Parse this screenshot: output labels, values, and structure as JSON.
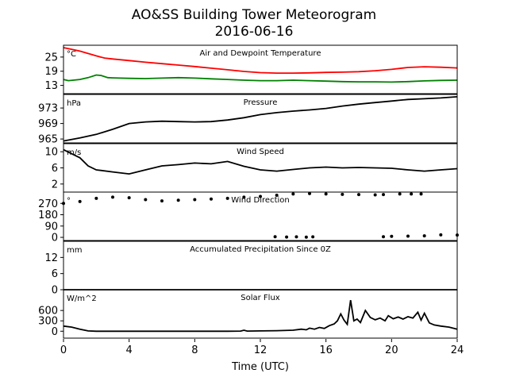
{
  "figure": {
    "title": "AO&SS Building Tower Meteorogram",
    "subtitle": "2016-06-16",
    "xlabel": "Time (UTC)"
  },
  "chart_data": [
    {
      "type": "line",
      "title": "Air and Dewpoint Temperature",
      "unit": "°C",
      "xlim": [
        0,
        24
      ],
      "ylim": [
        9.5,
        30
      ],
      "yticks": [
        13,
        19,
        25
      ],
      "series": [
        {
          "color": "#ff0000",
          "points": [
            [
              0,
              29.0
            ],
            [
              0.5,
              28.3
            ],
            [
              1,
              27.5
            ],
            [
              1.5,
              26.5
            ],
            [
              2,
              25.5
            ],
            [
              2.5,
              24.6
            ],
            [
              3,
              24.2
            ],
            [
              4,
              23.5
            ],
            [
              5,
              22.8
            ],
            [
              6,
              22.2
            ],
            [
              7,
              21.6
            ],
            [
              8,
              21.0
            ],
            [
              9,
              20.3
            ],
            [
              10,
              19.6
            ],
            [
              11,
              18.9
            ],
            [
              12,
              18.4
            ],
            [
              13,
              18.2
            ],
            [
              14,
              18.2
            ],
            [
              15,
              18.3
            ],
            [
              16,
              18.5
            ],
            [
              17,
              18.6
            ],
            [
              18,
              18.8
            ],
            [
              19,
              19.2
            ],
            [
              20,
              19.8
            ],
            [
              21,
              20.6
            ],
            [
              22,
              20.9
            ],
            [
              23,
              20.7
            ],
            [
              24,
              20.4
            ]
          ]
        },
        {
          "color": "#008000",
          "points": [
            [
              0,
              15.5
            ],
            [
              0.3,
              15.0
            ],
            [
              0.6,
              15.2
            ],
            [
              1,
              15.5
            ],
            [
              1.5,
              16.3
            ],
            [
              2,
              17.4
            ],
            [
              2.3,
              17.2
            ],
            [
              2.7,
              16.3
            ],
            [
              3,
              16.2
            ],
            [
              4,
              16.0
            ],
            [
              5,
              15.9
            ],
            [
              6,
              16.1
            ],
            [
              7,
              16.3
            ],
            [
              8,
              16.1
            ],
            [
              9,
              15.8
            ],
            [
              10,
              15.5
            ],
            [
              11,
              15.2
            ],
            [
              12,
              15.0
            ],
            [
              13,
              15.0
            ],
            [
              14,
              15.2
            ],
            [
              15,
              15.0
            ],
            [
              16,
              14.8
            ],
            [
              17,
              14.6
            ],
            [
              18,
              14.5
            ],
            [
              19,
              14.5
            ],
            [
              20,
              14.4
            ],
            [
              21,
              14.6
            ],
            [
              22,
              14.9
            ],
            [
              23,
              15.1
            ],
            [
              24,
              15.2
            ]
          ]
        }
      ]
    },
    {
      "type": "line",
      "title": "Pressure",
      "unit": "hPa",
      "xlim": [
        0,
        24
      ],
      "ylim": [
        964,
        976.5
      ],
      "yticks": [
        965,
        969,
        973
      ],
      "series": [
        {
          "color": "#000000",
          "points": [
            [
              0,
              964.5
            ],
            [
              1,
              965.3
            ],
            [
              2,
              966.2
            ],
            [
              3,
              967.5
            ],
            [
              4,
              969.0
            ],
            [
              5,
              969.4
            ],
            [
              6,
              969.6
            ],
            [
              7,
              969.5
            ],
            [
              8,
              969.4
            ],
            [
              9,
              969.5
            ],
            [
              10,
              969.9
            ],
            [
              11,
              970.5
            ],
            [
              12,
              971.3
            ],
            [
              13,
              971.8
            ],
            [
              14,
              972.2
            ],
            [
              15,
              972.5
            ],
            [
              16,
              972.9
            ],
            [
              17,
              973.5
            ],
            [
              18,
              974.0
            ],
            [
              19,
              974.4
            ],
            [
              20,
              974.8
            ],
            [
              21,
              975.2
            ],
            [
              22,
              975.4
            ],
            [
              23,
              975.6
            ],
            [
              24,
              975.9
            ]
          ]
        }
      ]
    },
    {
      "type": "line",
      "title": "Wind Speed",
      "unit": "m/s",
      "xlim": [
        0,
        24
      ],
      "ylim": [
        0,
        12
      ],
      "yticks": [
        2,
        6,
        10
      ],
      "series": [
        {
          "color": "#000000",
          "points": [
            [
              0,
              10.5
            ],
            [
              0.5,
              9.5
            ],
            [
              1,
              8.5
            ],
            [
              1.5,
              6.5
            ],
            [
              2,
              5.5
            ],
            [
              3,
              5.0
            ],
            [
              4,
              4.5
            ],
            [
              5,
              5.5
            ],
            [
              6,
              6.5
            ],
            [
              7,
              6.8
            ],
            [
              8,
              7.2
            ],
            [
              9,
              7.0
            ],
            [
              10,
              7.6
            ],
            [
              11,
              6.4
            ],
            [
              12,
              5.5
            ],
            [
              13,
              5.2
            ],
            [
              14,
              5.6
            ],
            [
              15,
              6.0
            ],
            [
              16,
              6.2
            ],
            [
              17,
              6.0
            ],
            [
              18,
              6.1
            ],
            [
              19,
              6.0
            ],
            [
              20,
              5.9
            ],
            [
              21,
              5.5
            ],
            [
              22,
              5.2
            ],
            [
              23,
              5.5
            ],
            [
              24,
              5.8
            ]
          ]
        }
      ]
    },
    {
      "type": "scatter",
      "title": "Wind Direction",
      "unit": "°",
      "xlim": [
        0,
        24
      ],
      "ylim": [
        -25,
        360
      ],
      "yticks": [
        0,
        90,
        180,
        270
      ],
      "series": [
        {
          "color": "#000000",
          "points": [
            [
              0,
              270
            ],
            [
              1,
              285
            ],
            [
              2,
              310
            ],
            [
              3,
              320
            ],
            [
              4,
              315
            ],
            [
              5,
              300
            ],
            [
              6,
              290
            ],
            [
              7,
              295
            ],
            [
              8,
              300
            ],
            [
              9,
              305
            ],
            [
              10,
              310
            ],
            [
              11,
              320
            ],
            [
              12,
              325
            ],
            [
              13,
              335
            ],
            [
              14,
              345
            ],
            [
              15,
              348
            ],
            [
              16,
              345
            ],
            [
              17,
              342
            ],
            [
              18,
              340
            ],
            [
              19,
              338
            ],
            [
              19.5,
              340
            ],
            [
              20.5,
              345
            ],
            [
              21.2,
              345
            ],
            [
              21.8,
              345
            ],
            [
              12.9,
              5
            ],
            [
              13.6,
              3
            ],
            [
              14.2,
              4
            ],
            [
              14.8,
              2
            ],
            [
              15.2,
              4
            ],
            [
              19.5,
              5
            ],
            [
              20,
              8
            ],
            [
              21,
              10
            ],
            [
              22,
              12
            ],
            [
              23,
              20
            ],
            [
              24,
              18
            ]
          ]
        }
      ]
    },
    {
      "type": "line",
      "title": "Accumulated Precipitation Since 0Z",
      "unit": "mm",
      "xlim": [
        0,
        24
      ],
      "ylim": [
        0,
        18
      ],
      "yticks": [
        0,
        6,
        12
      ],
      "series": [
        {
          "color": "#000000",
          "points": [
            [
              0,
              0
            ],
            [
              24,
              0
            ]
          ]
        }
      ]
    },
    {
      "type": "line",
      "title": "Solar Flux",
      "unit": "W/m^2",
      "xlim": [
        0,
        24
      ],
      "ylim": [
        -200,
        1200
      ],
      "yticks": [
        0,
        300,
        600
      ],
      "series": [
        {
          "color": "#000000",
          "points": [
            [
              0,
              150
            ],
            [
              0.5,
              120
            ],
            [
              1,
              60
            ],
            [
              1.5,
              10
            ],
            [
              2,
              0
            ],
            [
              4,
              0
            ],
            [
              8,
              0
            ],
            [
              10,
              0
            ],
            [
              10.8,
              5
            ],
            [
              11,
              30
            ],
            [
              11.2,
              5
            ],
            [
              12,
              10
            ],
            [
              13,
              15
            ],
            [
              14,
              30
            ],
            [
              14.5,
              60
            ],
            [
              14.8,
              40
            ],
            [
              15,
              90
            ],
            [
              15.3,
              60
            ],
            [
              15.6,
              110
            ],
            [
              15.9,
              80
            ],
            [
              16.2,
              160
            ],
            [
              16.5,
              210
            ],
            [
              16.7,
              300
            ],
            [
              16.9,
              500
            ],
            [
              17.1,
              320
            ],
            [
              17.3,
              200
            ],
            [
              17.5,
              900
            ],
            [
              17.7,
              300
            ],
            [
              17.9,
              350
            ],
            [
              18.1,
              250
            ],
            [
              18.4,
              600
            ],
            [
              18.7,
              400
            ],
            [
              19,
              330
            ],
            [
              19.3,
              380
            ],
            [
              19.6,
              300
            ],
            [
              19.8,
              450
            ],
            [
              20.1,
              360
            ],
            [
              20.4,
              410
            ],
            [
              20.7,
              350
            ],
            [
              21,
              420
            ],
            [
              21.3,
              380
            ],
            [
              21.6,
              550
            ],
            [
              21.8,
              320
            ],
            [
              22,
              520
            ],
            [
              22.3,
              240
            ],
            [
              22.6,
              180
            ],
            [
              23,
              150
            ],
            [
              23.5,
              120
            ],
            [
              24,
              60
            ]
          ]
        }
      ]
    }
  ]
}
